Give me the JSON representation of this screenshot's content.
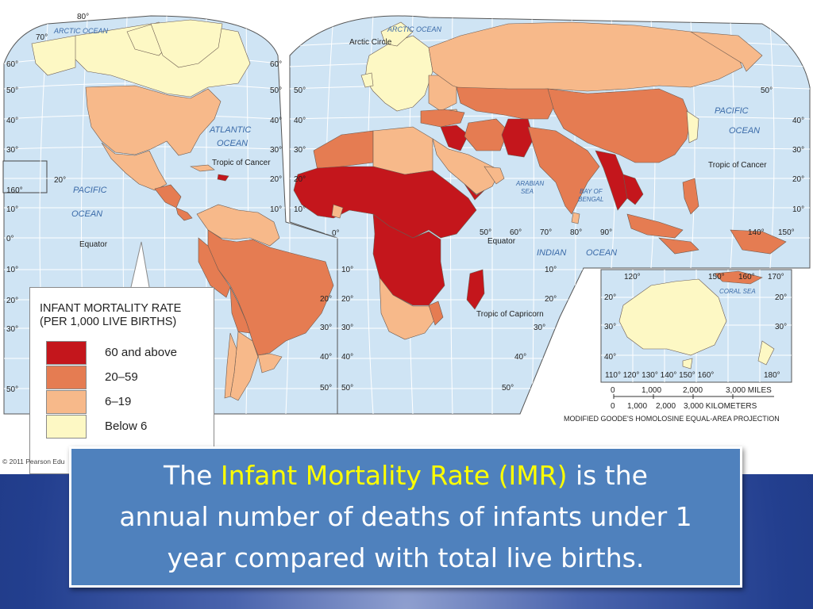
{
  "colors": {
    "ocean": "#cfe4f4",
    "grid": "#ffffff",
    "level_60_above": "#c4161c",
    "level_20_59": "#e57c52",
    "level_6_19": "#f7b98a",
    "level_below_6": "#fdf8c4",
    "caption_bg": "#4f81bd",
    "caption_highlight": "#ffff00"
  },
  "map": {
    "ocean_labels": {
      "arctic_left": "ARCTIC OCEAN",
      "arctic_right": "ARCTIC OCEAN",
      "atlantic_1": "ATLANTIC",
      "atlantic_2": "OCEAN",
      "pacific_left_1": "PACIFIC",
      "pacific_left_2": "OCEAN",
      "pacific_right_1": "PACIFIC",
      "pacific_right_2": "OCEAN",
      "arabian_1": "ARABIAN",
      "arabian_2": "SEA",
      "bengal_1": "BAY OF",
      "bengal_2": "BENGAL",
      "indian": "INDIAN",
      "indian_ocean": "OCEAN",
      "coral": "CORAL SEA"
    },
    "line_labels": {
      "arctic_circle": "Arctic Circle",
      "tropic_cancer_left": "Tropic of Cancer",
      "tropic_cancer_right": "Tropic of Cancer",
      "equator_left": "Equator",
      "equator_right": "Equator",
      "tropic_capricorn": "Tropic of Capricorn"
    },
    "lat_ticks": {
      "l80": "80°",
      "l70": "70°",
      "l60a": "60°",
      "l60b": "60°",
      "l50a": "50°",
      "l50b": "50°",
      "l50c": "50°",
      "l50d": "50°",
      "l40a": "40°",
      "l40b": "40°",
      "l40c": "40°",
      "l40d": "40°",
      "l30a": "30°",
      "l30b": "30°",
      "l30c": "30°",
      "l30d": "30°",
      "l20a": "20°",
      "l20b": "20°",
      "l20c": "20°",
      "l20d": "20°",
      "l10a": "10°",
      "l10b": "10°",
      "l10c": "10°",
      "l10d": "10°",
      "l0": "0°",
      "l0b": "0°",
      "l160": "160°"
    },
    "lon_ticks": {
      "e50": "50°",
      "e60": "60°",
      "e70": "70°",
      "e80": "80°",
      "e90": "90°",
      "e140": "140°",
      "e150": "150°"
    },
    "southern": {
      "s10a": "10°",
      "s10b": "10°",
      "s20a": "20°",
      "s20b": "20°",
      "s20c": "20°",
      "s30a": "30°",
      "s30b": "30°",
      "s30c": "30°",
      "s40a": "40°",
      "s40b": "40°",
      "s50a": "50°",
      "s50b": "50°",
      "s50c": "50°"
    },
    "australia_inset": {
      "top_120": "120°",
      "top_150": "150°",
      "top_160": "160°",
      "top_170": "170°",
      "r20a": "20°",
      "r20b": "20°",
      "r30a": "30°",
      "r30b": "30°",
      "r40": "40°",
      "bottom": "110° 120° 130° 140° 150° 160°",
      "b180": "180°"
    },
    "scale_miles": [
      "0",
      "1,000",
      "2,000",
      "3,000 MILES"
    ],
    "scale_km": [
      "0",
      "1,000",
      "2,000",
      "3,000 KILOMETERS"
    ],
    "projection": "MODIFIED GOODE'S HOMOLOSINE EQUAL-AREA PROJECTION"
  },
  "legend": {
    "title_line1": "INFANT MORTALITY RATE",
    "title_line2": "(PER 1,000 LIVE BIRTHS)",
    "items": [
      {
        "label": "60 and above",
        "color": "#c4161c"
      },
      {
        "label": "20–59",
        "color": "#e57c52"
      },
      {
        "label": "6–19",
        "color": "#f7b98a"
      },
      {
        "label": "Below 6",
        "color": "#fdf8c4"
      }
    ]
  },
  "copyright": "© 2011 Pearson Edu",
  "caption": {
    "prefix": "The ",
    "highlight": "Infant Mortality Rate (IMR)",
    "suffix_line1": " is the",
    "line2": "annual number of deaths of infants under 1",
    "line3": "year compared with total live births."
  }
}
